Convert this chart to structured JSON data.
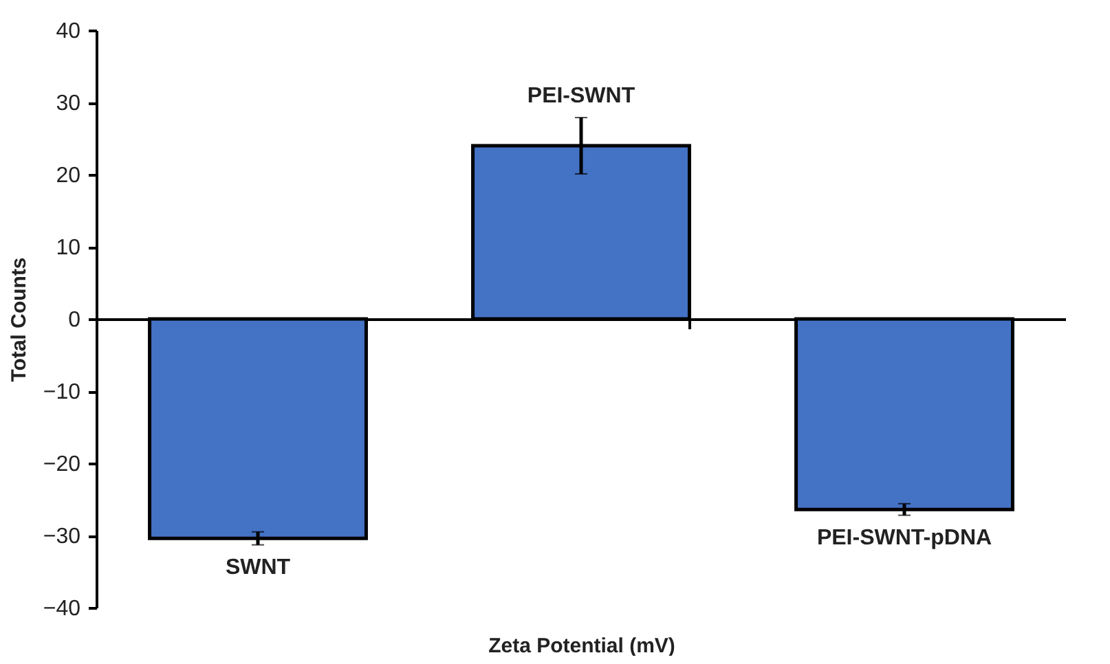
{
  "chart_data": {
    "type": "bar",
    "xlabel": "Zeta Potential (mV)",
    "ylabel": "Total Counts",
    "categories": [
      "SWNT",
      "PEI-SWNT",
      "PEI-SWNT-pDNA"
    ],
    "values": [
      -30.4,
      24,
      -26.4
    ],
    "errors": [
      0.9,
      3.9,
      0.8
    ],
    "color": "#4472c4",
    "ylim": [
      -40,
      40
    ],
    "yticks": [
      -40,
      -30,
      -20,
      -10,
      0,
      10,
      20,
      30,
      40
    ],
    "tick_labels": "y"
  }
}
